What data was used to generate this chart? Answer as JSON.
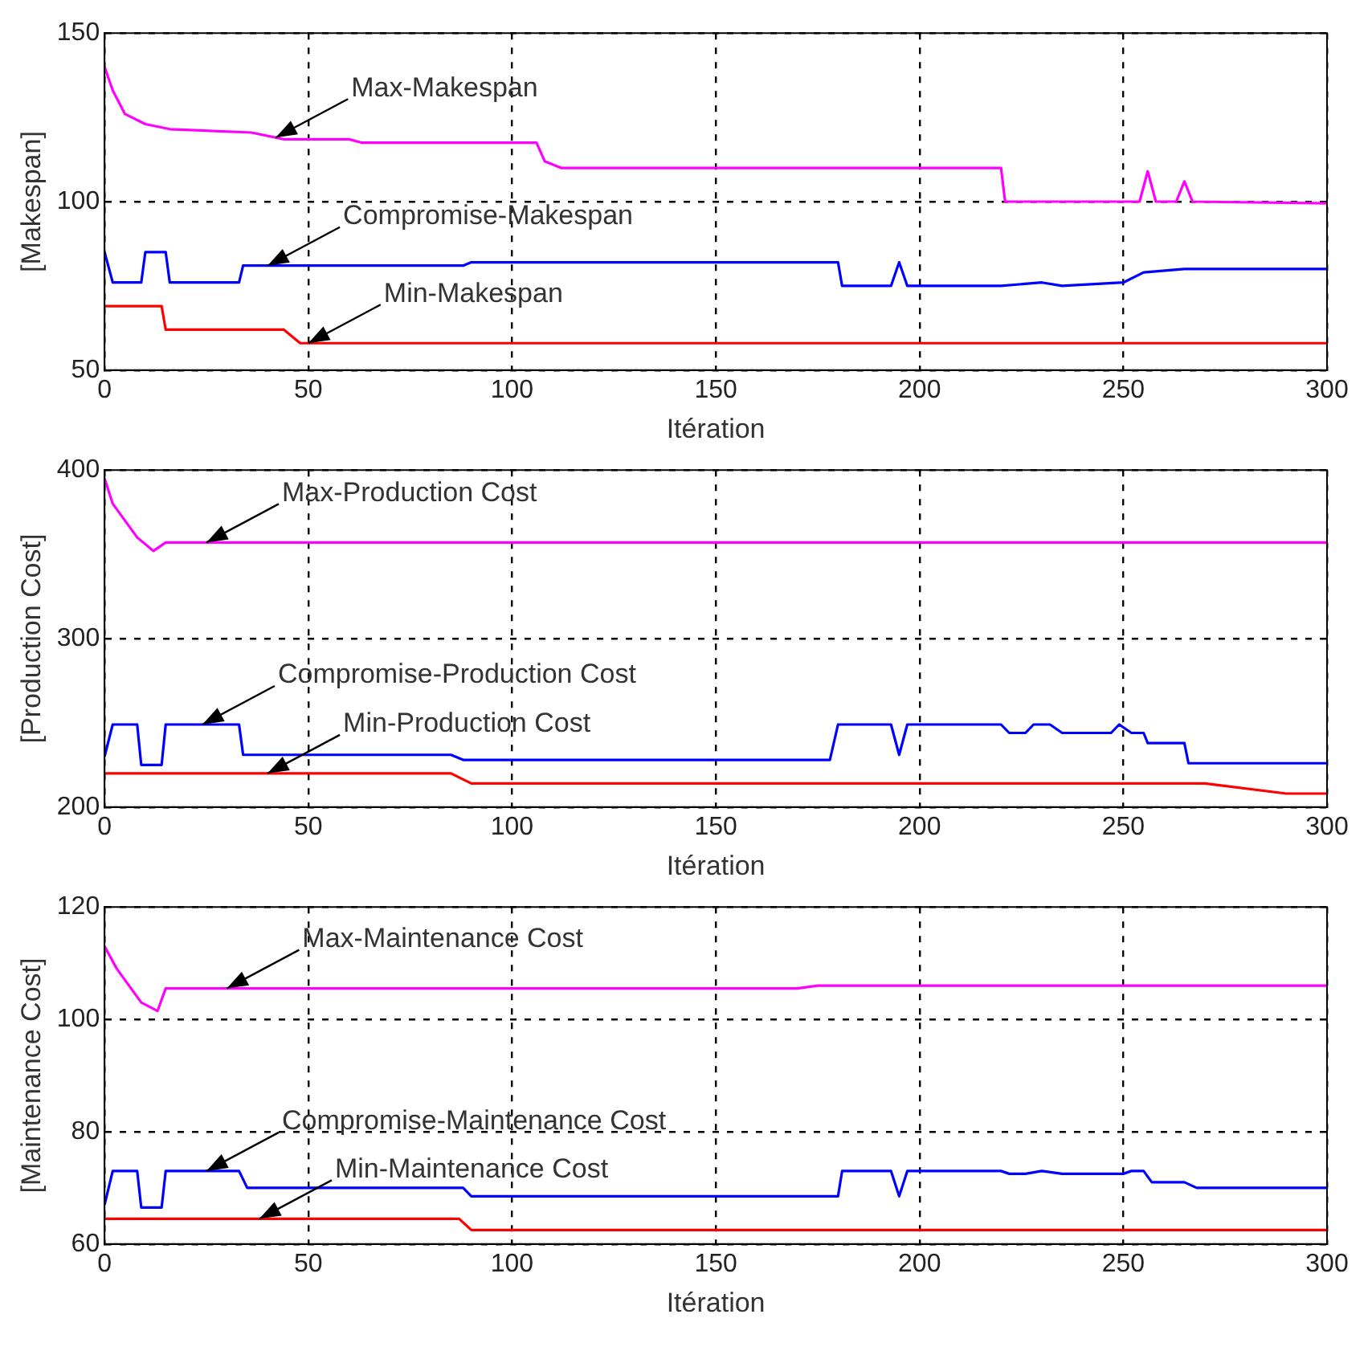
{
  "chart_data": [
    {
      "type": "line",
      "xlabel": "Itération",
      "ylabel": "[Makespan]",
      "xlim": [
        0,
        300
      ],
      "xticks": [
        0,
        50,
        100,
        150,
        200,
        250,
        300
      ],
      "ylim": [
        50,
        150
      ],
      "yticks": [
        50,
        100,
        150
      ],
      "grid": true,
      "series": [
        {
          "color": "#ff00ff",
          "x": [
            0,
            2,
            5,
            10,
            16,
            36,
            44,
            60,
            63,
            106,
            108,
            112,
            220,
            221,
            254,
            256,
            258,
            263,
            265,
            267,
            300
          ],
          "values": [
            140,
            133,
            126,
            123,
            121.5,
            120.5,
            118.5,
            118.5,
            117.5,
            117.5,
            112,
            110,
            110,
            100,
            100,
            109,
            100,
            100,
            106,
            100,
            99.5
          ]
        },
        {
          "color": "#0000ff",
          "x": [
            0,
            2,
            9,
            10,
            15,
            16,
            33,
            34,
            88,
            90,
            180,
            181,
            193,
            195,
            197,
            220,
            230,
            235,
            250,
            255,
            265,
            300
          ],
          "values": [
            85,
            76,
            76,
            85,
            85,
            76,
            76,
            81,
            81,
            82,
            82,
            75,
            75,
            82,
            75,
            75,
            76,
            75,
            76,
            79,
            80,
            80
          ]
        },
        {
          "color": "#ff0000",
          "x": [
            0,
            14,
            15,
            44,
            48,
            300
          ],
          "values": [
            69,
            69,
            62,
            62,
            58,
            58
          ]
        }
      ],
      "annotations": [
        {
          "text": "Max-Makespan",
          "x": 42,
          "y": 119
        },
        {
          "text": "Compromise-Makespan",
          "x": 40,
          "y": 81
        },
        {
          "text": "Min-Makespan",
          "x": 50,
          "y": 58
        }
      ]
    },
    {
      "type": "line",
      "xlabel": "Itération",
      "ylabel": "[Production Cost]",
      "xlim": [
        0,
        300
      ],
      "xticks": [
        0,
        50,
        100,
        150,
        200,
        250,
        300
      ],
      "ylim": [
        200,
        400
      ],
      "yticks": [
        200,
        300,
        400
      ],
      "grid": true,
      "series": [
        {
          "color": "#ff00ff",
          "x": [
            0,
            2,
            5,
            8,
            12,
            15,
            300
          ],
          "values": [
            395,
            380,
            370,
            360,
            352,
            357,
            357
          ]
        },
        {
          "color": "#0000ff",
          "x": [
            0,
            2,
            8,
            9,
            14,
            15,
            33,
            34,
            85,
            88,
            178,
            180,
            193,
            195,
            197,
            220,
            222,
            226,
            228,
            232,
            235,
            247,
            249,
            252,
            255,
            256,
            265,
            266,
            300
          ],
          "values": [
            230,
            249,
            249,
            225,
            225,
            249,
            249,
            231,
            231,
            228,
            228,
            249,
            249,
            231,
            249,
            249,
            244,
            244,
            249,
            249,
            244,
            244,
            249,
            244,
            244,
            238,
            238,
            226,
            226
          ]
        },
        {
          "color": "#ff0000",
          "x": [
            0,
            85,
            90,
            270,
            290,
            300
          ],
          "values": [
            220,
            220,
            214,
            214,
            208,
            208
          ]
        }
      ],
      "annotations": [
        {
          "text": "Max-Production Cost",
          "x": 25,
          "y": 357
        },
        {
          "text": "Compromise-Production Cost",
          "x": 24,
          "y": 249
        },
        {
          "text": "Min-Production Cost",
          "x": 40,
          "y": 220
        }
      ]
    },
    {
      "type": "line",
      "xlabel": "Itération",
      "ylabel": "[Maintenance Cost]",
      "xlim": [
        0,
        300
      ],
      "xticks": [
        0,
        50,
        100,
        150,
        200,
        250,
        300
      ],
      "ylim": [
        60,
        120
      ],
      "yticks": [
        60,
        80,
        100,
        120
      ],
      "grid": true,
      "series": [
        {
          "color": "#ff00ff",
          "x": [
            0,
            3,
            6,
            9,
            13,
            15,
            170,
            175,
            300
          ],
          "values": [
            113,
            109,
            106,
            103,
            101.5,
            105.5,
            105.5,
            106,
            106
          ]
        },
        {
          "color": "#0000ff",
          "x": [
            0,
            2,
            8,
            9,
            14,
            15,
            33,
            35,
            88,
            90,
            180,
            181,
            193,
            195,
            197,
            220,
            222,
            226,
            230,
            235,
            250,
            252,
            255,
            257,
            265,
            268,
            300
          ],
          "values": [
            67,
            73,
            73,
            66.5,
            66.5,
            73,
            73,
            70,
            70,
            68.5,
            68.5,
            73,
            73,
            68.5,
            73,
            73,
            72.5,
            72.5,
            73,
            72.5,
            72.5,
            73,
            73,
            71,
            71,
            70,
            70
          ]
        },
        {
          "color": "#ff0000",
          "x": [
            0,
            87,
            90,
            300
          ],
          "values": [
            64.5,
            64.5,
            62.5,
            62.5
          ]
        }
      ],
      "annotations": [
        {
          "text": "Max-Maintenance Cost",
          "x": 30,
          "y": 105.5
        },
        {
          "text": "Compromise-Maintenance Cost",
          "x": 25,
          "y": 73
        },
        {
          "text": "Min-Maintenance Cost",
          "x": 38,
          "y": 64.5
        }
      ]
    }
  ]
}
